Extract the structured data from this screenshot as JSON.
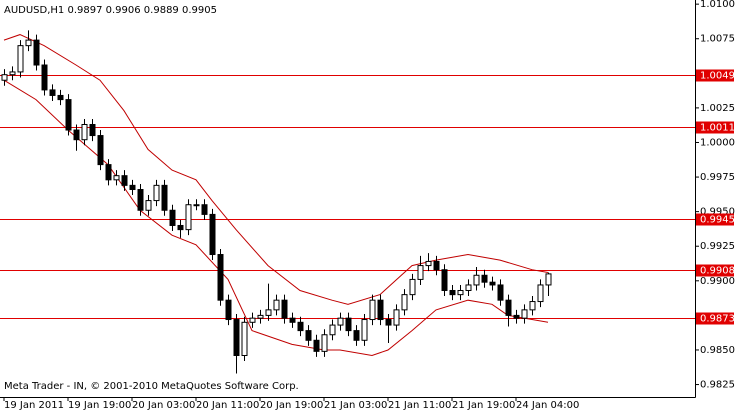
{
  "chart_data": {
    "type": "candlestick",
    "title": "AUDUSD,H1  0.9897 0.9906 0.9889 0.9905",
    "footer": "Meta Trader - IN, © 2001-2010 MetaQuotes Software Corp.",
    "categories": [
      "19 Jan 2011",
      null,
      null,
      null,
      null,
      null,
      null,
      null,
      "19 Jan 19:00",
      null,
      null,
      null,
      null,
      null,
      null,
      null,
      "20 Jan 03:00",
      null,
      null,
      null,
      null,
      null,
      null,
      null,
      "20 Jan 11:00",
      null,
      null,
      null,
      null,
      null,
      null,
      null,
      "20 Jan 19:00",
      null,
      null,
      null,
      null,
      null,
      null,
      null,
      "21 Jan 03:00",
      null,
      null,
      null,
      null,
      null,
      null,
      null,
      "21 Jan 11:00",
      null,
      null,
      null,
      null,
      null,
      null,
      null,
      "21 Jan 19:00",
      null,
      null,
      null,
      null,
      null,
      null,
      null,
      "24 Jan 04:00",
      null,
      null,
      null,
      null
    ],
    "open": [
      1.0045,
      1.0049,
      1.0051,
      1.007,
      1.0074,
      1.0056,
      1.0038,
      1.0034,
      1.0031,
      1.0009,
      1.0002,
      1.0013,
      1.0005,
      0.9984,
      0.9973,
      0.9976,
      0.9969,
      0.9966,
      0.9951,
      0.9958,
      0.9969,
      0.9951,
      0.994,
      0.9937,
      0.9955,
      0.9955,
      0.9948,
      0.9919,
      0.9886,
      0.9872,
      0.9846,
      0.987,
      0.9873,
      0.9875,
      0.9879,
      0.9886,
      0.9873,
      0.987,
      0.9864,
      0.9857,
      0.9849,
      0.9861,
      0.9868,
      0.9873,
      0.9864,
      0.9857,
      0.9872,
      0.9886,
      0.9872,
      0.9868,
      0.9879,
      0.989,
      0.9901,
      0.9911,
      0.9914,
      0.9908,
      0.9893,
      0.989,
      0.9893,
      0.9897,
      0.9904,
      0.9899,
      0.9897,
      0.9886,
      0.9875,
      0.9873,
      0.9879,
      0.9885,
      0.9897
    ],
    "high": [
      1.0053,
      1.0055,
      1.0074,
      1.0081,
      1.0078,
      1.006,
      1.0042,
      1.0038,
      1.0035,
      1.0013,
      1.0017,
      1.0017,
      1.0009,
      0.9988,
      0.998,
      0.998,
      0.9973,
      0.997,
      0.9962,
      0.9973,
      0.9973,
      0.9955,
      0.9944,
      0.9959,
      0.9959,
      0.9959,
      0.9952,
      0.9923,
      0.989,
      0.9876,
      0.9874,
      0.9877,
      0.9879,
      0.9898,
      0.989,
      0.989,
      0.9877,
      0.9874,
      0.9868,
      0.9861,
      0.9865,
      0.9872,
      0.9877,
      0.9877,
      0.9868,
      0.9876,
      0.989,
      0.989,
      0.9876,
      0.9883,
      0.9894,
      0.9905,
      0.9918,
      0.992,
      0.9918,
      0.9912,
      0.9897,
      0.9897,
      0.9901,
      0.991,
      0.9908,
      0.9903,
      0.9901,
      0.989,
      0.9879,
      0.9883,
      0.9889,
      0.9901,
      0.9906
    ],
    "low": [
      1.0041,
      1.0045,
      1.0047,
      1.0066,
      1.0052,
      1.0034,
      1.003,
      1.0027,
      1.0005,
      0.9994,
      0.9998,
      1.0001,
      0.998,
      0.9969,
      0.9969,
      0.9965,
      0.9962,
      0.9947,
      0.9947,
      0.9954,
      0.9947,
      0.9936,
      0.9931,
      0.9933,
      0.9951,
      0.9944,
      0.9915,
      0.9882,
      0.9868,
      0.9833,
      0.9842,
      0.9866,
      0.9869,
      0.9871,
      0.9875,
      0.9869,
      0.9866,
      0.986,
      0.9853,
      0.9845,
      0.9845,
      0.9857,
      0.9864,
      0.986,
      0.9853,
      0.9853,
      0.9868,
      0.9868,
      0.9855,
      0.9864,
      0.9875,
      0.9886,
      0.9897,
      0.9907,
      0.9904,
      0.9889,
      0.9886,
      0.9886,
      0.9889,
      0.9893,
      0.9895,
      0.9893,
      0.9882,
      0.9867,
      0.9869,
      0.9869,
      0.9875,
      0.9881,
      0.9889
    ],
    "close": [
      1.0049,
      1.0051,
      1.007,
      1.0074,
      1.0056,
      1.0038,
      1.0034,
      1.0031,
      1.0009,
      1.0002,
      1.0013,
      1.0005,
      0.9984,
      0.9973,
      0.9976,
      0.9969,
      0.9966,
      0.9951,
      0.9958,
      0.9969,
      0.9951,
      0.994,
      0.9937,
      0.9955,
      0.9955,
      0.9948,
      0.9919,
      0.9886,
      0.9872,
      0.9846,
      0.987,
      0.9873,
      0.9875,
      0.9879,
      0.9886,
      0.9873,
      0.987,
      0.9864,
      0.9857,
      0.9849,
      0.9861,
      0.9868,
      0.9873,
      0.9864,
      0.9857,
      0.9872,
      0.9886,
      0.9872,
      0.9868,
      0.9879,
      0.989,
      0.9901,
      0.9911,
      0.9914,
      0.9908,
      0.9893,
      0.989,
      0.9893,
      0.9897,
      0.9904,
      0.9899,
      0.9897,
      0.9886,
      0.9875,
      0.9873,
      0.9879,
      0.9885,
      0.9897,
      0.9905
    ],
    "bull_color": "#ffffff",
    "bear_color": "#000000",
    "outline_color": "#000000",
    "lines": [
      {
        "color": "#c00000",
        "x": [
          0,
          2,
          5,
          9,
          12,
          15,
          18,
          21,
          24,
          26,
          29,
          33,
          37,
          41,
          43,
          47,
          51,
          54,
          58,
          62,
          66,
          68
        ],
        "values": [
          1.0074,
          1.0078,
          1.007,
          1.0056,
          1.0045,
          1.0023,
          0.9995,
          0.998,
          0.9973,
          0.9958,
          0.9937,
          0.9911,
          0.9893,
          0.9886,
          0.9883,
          0.989,
          0.9911,
          0.9915,
          0.9919,
          0.9915,
          0.9908,
          0.9906
        ]
      },
      {
        "color": "#c00000",
        "x": [
          0,
          4,
          8,
          13,
          17,
          21,
          24,
          28,
          31,
          36,
          40,
          42,
          46,
          48,
          51,
          54,
          58,
          61,
          63,
          68
        ],
        "values": [
          1.0045,
          1.0031,
          1.0009,
          0.9984,
          0.9951,
          0.9933,
          0.9926,
          0.9901,
          0.9864,
          0.9854,
          0.985,
          0.985,
          0.9846,
          0.985,
          0.9864,
          0.9879,
          0.9886,
          0.9883,
          0.9875,
          0.987
        ]
      }
    ],
    "levels": [
      1.0049,
      1.0011,
      0.9945,
      0.9908,
      0.9873
    ],
    "level_color": "#e00000",
    "ylim": [
      0.9816,
      1.0103
    ],
    "yticks": [
      {
        "value": 1.01,
        "label": "1.0100"
      },
      1.0075,
      1.0025,
      {
        "value": 1.0,
        "label": "1.0000"
      },
      0.9975,
      {
        "value": 0.995,
        "label": "0.9950"
      },
      0.9925,
      {
        "value": 0.99,
        "label": "0.9900"
      },
      {
        "value": 0.985,
        "label": "0.9850"
      },
      0.9825
    ]
  }
}
